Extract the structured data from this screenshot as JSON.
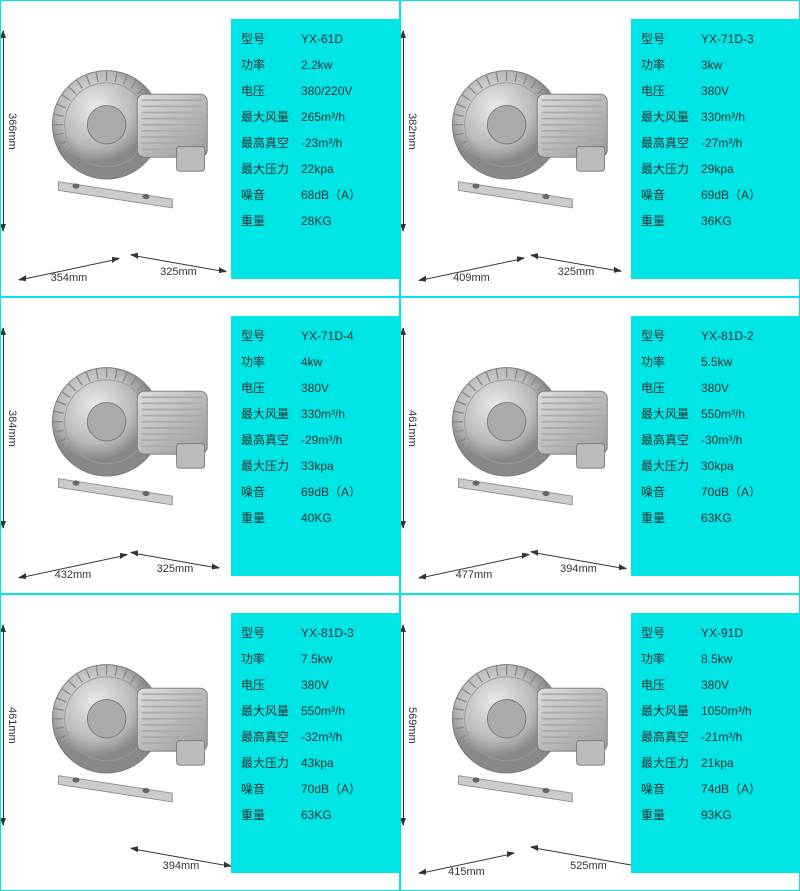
{
  "labels": {
    "model": "型号",
    "power": "功率",
    "voltage": "电压",
    "maxair": "最大风量",
    "maxvac": "最高真空",
    "maxpress": "最大压力",
    "noise": "噪音",
    "weight": "重量"
  },
  "colors": {
    "page_bg": "#00e5e5",
    "panel_bg": "#00e5e5",
    "cell_bg": "#ffffff",
    "text": "#333333",
    "blower": "#c8c8c8",
    "blower_dark": "#888888"
  },
  "products": [
    {
      "model": "YX-61D",
      "power": "2.2kw",
      "voltage": "380/220V",
      "maxair": "265m³/h",
      "maxvac": "-23m³/h",
      "maxpress": "22kpa",
      "noise": "68dB（A）",
      "weight": "28KG",
      "dim_h": "366mm",
      "dim_w1": "354mm",
      "dim_w2": "325mm",
      "w1px": 100,
      "w2px": 95
    },
    {
      "model": "YX-71D-3",
      "power": "3kw",
      "voltage": "380V",
      "maxair": "330m³/h",
      "maxvac": "-27m³/h",
      "maxpress": "29kpa",
      "noise": "69dB（A）",
      "weight": "36KG",
      "dim_h": "382mm",
      "dim_w1": "409mm",
      "dim_w2": "325mm",
      "w1px": 105,
      "w2px": 90
    },
    {
      "model": "YX-71D-4",
      "power": "4kw",
      "voltage": "380V",
      "maxair": "330m³/h",
      "maxvac": "-29m³/h",
      "maxpress": "33kpa",
      "noise": "69dB（A）",
      "weight": "40KG",
      "dim_h": "384mm",
      "dim_w1": "432mm",
      "dim_w2": "325mm",
      "w1px": 108,
      "w2px": 88
    },
    {
      "model": "YX-81D-2",
      "power": "5.5kw",
      "voltage": "380V",
      "maxair": "550m³/h",
      "maxvac": "-30m³/h",
      "maxpress": "30kpa",
      "noise": "70dB（A）",
      "weight": "63KG",
      "dim_h": "461mm",
      "dim_w1": "477mm",
      "dim_w2": "394mm",
      "w1px": 110,
      "w2px": 95
    },
    {
      "model": "YX-81D-3",
      "power": "7.5kw",
      "voltage": "380V",
      "maxair": "550m³/h",
      "maxvac": "-32m³/h",
      "maxpress": "43kpa",
      "noise": "70dB（A）",
      "weight": "63KG",
      "dim_h": "461mm",
      "dim_w1": "",
      "dim_w2": "394mm",
      "w1px": 0,
      "w2px": 100
    },
    {
      "model": "YX-91D",
      "power": "8.5kw",
      "voltage": "380V",
      "maxair": "1050m³/h",
      "maxvac": "-21m³/h",
      "maxpress": "21kpa",
      "noise": "74dB（A）",
      "weight": "93KG",
      "dim_h": "569mm",
      "dim_w1": "415mm",
      "dim_w2": "525mm",
      "w1px": 95,
      "w2px": 115
    }
  ]
}
